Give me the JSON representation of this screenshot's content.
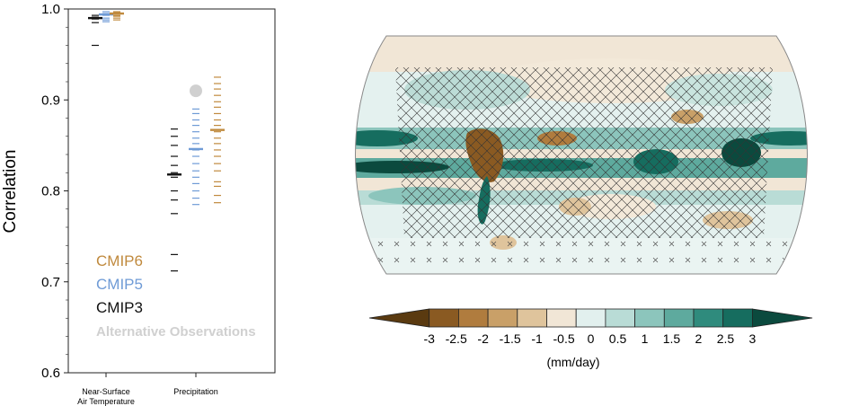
{
  "chart_data": [
    {
      "type": "scatter",
      "ylabel": "Correlation",
      "ylim": [
        0.6,
        1.0
      ],
      "yticks": [
        "0.6",
        "0.7",
        "0.8",
        "0.9",
        "1.0"
      ],
      "categories": [
        "Near-Surface Air Temperature",
        "Precipitation"
      ],
      "category_lines": [
        [
          "Near-Surface",
          "Air Temperature"
        ],
        [
          "Precipitation"
        ]
      ],
      "legend": [
        "CMIP6",
        "CMIP5",
        "CMIP3",
        "Alternative Observations"
      ],
      "colors": {
        "CMIP6": "#c08a3e",
        "CMIP5": "#6f9bd6",
        "CMIP3": "#111111",
        "Alternative Observations": "#d0d0d0"
      },
      "series": [
        {
          "name": "CMIP3",
          "temperature": [
            0.99,
            0.991,
            0.989,
            0.993,
            0.985,
            0.96
          ],
          "precipitation": [
            0.868,
            0.86,
            0.85,
            0.838,
            0.828,
            0.82,
            0.815,
            0.8,
            0.79,
            0.775,
            0.73,
            0.712
          ],
          "mean": [
            0.99,
            0.818
          ]
        },
        {
          "name": "CMIP5",
          "temperature": [
            0.997,
            0.995,
            0.993,
            0.99,
            0.988,
            0.986
          ],
          "precipitation": [
            0.89,
            0.885,
            0.878,
            0.872,
            0.865,
            0.858,
            0.852,
            0.845,
            0.838,
            0.83,
            0.822,
            0.815,
            0.808,
            0.8,
            0.792,
            0.785
          ],
          "mean": [
            0.994,
            0.846
          ]
        },
        {
          "name": "CMIP6",
          "temperature": [
            0.997,
            0.996,
            0.995,
            0.993,
            0.992,
            0.99,
            0.988
          ],
          "precipitation": [
            0.925,
            0.918,
            0.912,
            0.905,
            0.898,
            0.892,
            0.885,
            0.878,
            0.872,
            0.865,
            0.858,
            0.852,
            0.845,
            0.838,
            0.83,
            0.822,
            0.81,
            0.805,
            0.795,
            0.787
          ],
          "mean": [
            0.995,
            0.867
          ]
        },
        {
          "name": "Alternative Observations",
          "temperature": [],
          "precipitation": [
            0.91
          ]
        }
      ]
    },
    {
      "type": "heatmap",
      "colorbar": {
        "ticks": [
          "-3",
          "-2.5",
          "-2",
          "-1.5",
          "-1",
          "-0.5",
          "0",
          "0.5",
          "1",
          "1.5",
          "2",
          "2.5",
          "3"
        ],
        "unit_label": "(mm/day)",
        "colors": [
          "#5a3a10",
          "#8a5a22",
          "#b07c3e",
          "#c9a068",
          "#dfc49c",
          "#f1e6d6",
          "#e2f0ee",
          "#b9dcd6",
          "#8cc5bc",
          "#5eaa9e",
          "#2f8b7d",
          "#166d5f",
          "#0b4a3e"
        ]
      }
    }
  ]
}
